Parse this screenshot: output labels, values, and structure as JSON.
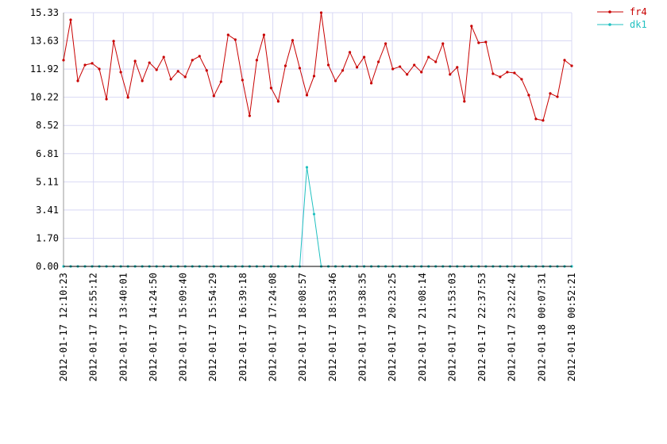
{
  "chart_data": {
    "type": "line",
    "series": [
      {
        "name": "fr4",
        "color": "#c80000",
        "values": [
          12.46,
          14.9,
          11.21,
          12.17,
          12.27,
          11.93,
          10.11,
          13.61,
          11.74,
          10.21,
          12.41,
          11.21,
          12.31,
          11.88,
          12.65,
          11.31,
          11.79,
          11.45,
          12.46,
          12.7,
          11.84,
          10.3,
          11.16,
          13.99,
          13.7,
          11.26,
          9.1,
          12.46,
          13.99,
          10.78,
          9.97,
          12.12,
          13.66,
          11.98,
          10.35,
          11.5,
          15.33,
          12.17,
          11.21,
          11.84,
          12.94,
          12.03,
          12.65,
          11.07,
          12.36,
          13.46,
          11.93,
          12.07,
          11.6,
          12.17,
          11.74,
          12.65,
          12.36,
          13.46,
          11.6,
          12.03,
          9.97,
          14.52,
          13.51,
          13.56,
          11.64,
          11.45,
          11.74,
          11.69,
          11.31,
          10.35,
          8.91,
          8.82,
          10.45,
          10.25,
          12.46,
          12.12
        ]
      },
      {
        "name": "dk1",
        "color": "#20c0c0",
        "values": [
          0,
          0,
          0,
          0,
          0,
          0,
          0,
          0,
          0,
          0,
          0,
          0,
          0,
          0,
          0,
          0,
          0,
          0,
          0,
          0,
          0,
          0,
          0,
          0,
          0,
          0,
          0,
          0,
          0,
          0,
          0,
          0,
          0,
          0,
          5.99,
          3.16,
          0,
          0,
          0,
          0,
          0,
          0,
          0,
          0,
          0,
          0,
          0,
          0,
          0,
          0,
          0,
          0,
          0,
          0,
          0,
          0,
          0,
          0,
          0,
          0,
          0,
          0,
          0,
          0,
          0,
          0,
          0,
          0,
          0,
          0,
          0,
          0
        ]
      }
    ],
    "xlim": [
      0,
      71
    ],
    "xticks": [
      {
        "value": 0,
        "label": "2012-01-17 12:10:23"
      },
      {
        "value": 4.18,
        "label": "2012-01-17 12:55:12"
      },
      {
        "value": 8.35,
        "label": "2012-01-17 13:40:01"
      },
      {
        "value": 12.53,
        "label": "2012-01-17 14:24:50"
      },
      {
        "value": 16.71,
        "label": "2012-01-17 15:09:40"
      },
      {
        "value": 20.88,
        "label": "2012-01-17 15:54:29"
      },
      {
        "value": 25.06,
        "label": "2012-01-17 16:39:18"
      },
      {
        "value": 29.24,
        "label": "2012-01-17 17:24:08"
      },
      {
        "value": 33.41,
        "label": "2012-01-17 18:08:57"
      },
      {
        "value": 37.59,
        "label": "2012-01-17 18:53:46"
      },
      {
        "value": 41.76,
        "label": "2012-01-17 19:38:35"
      },
      {
        "value": 45.94,
        "label": "2012-01-17 20:23:25"
      },
      {
        "value": 50.12,
        "label": "2012-01-17 21:08:14"
      },
      {
        "value": 54.29,
        "label": "2012-01-17 21:53:03"
      },
      {
        "value": 58.47,
        "label": "2012-01-17 22:37:53"
      },
      {
        "value": 62.65,
        "label": "2012-01-17 23:22:42"
      },
      {
        "value": 66.82,
        "label": "2012-01-18 00:07:31"
      },
      {
        "value": 71,
        "label": "2012-01-18 00:52:21"
      }
    ],
    "ylim": [
      0,
      15.33
    ],
    "yticks": [
      {
        "value": 0,
        "label": "0.00"
      },
      {
        "value": 1.703,
        "label": "1.70"
      },
      {
        "value": 3.407,
        "label": "3.41"
      },
      5.11,
      {
        "value": 6.813,
        "label": "6.81"
      },
      {
        "value": 8.517,
        "label": "8.52"
      },
      10.22,
      {
        "value": 11.923,
        "label": "11.92"
      },
      {
        "value": 13.627,
        "label": "13.63"
      },
      15.33
    ],
    "grid": true,
    "legend": "top-right"
  }
}
